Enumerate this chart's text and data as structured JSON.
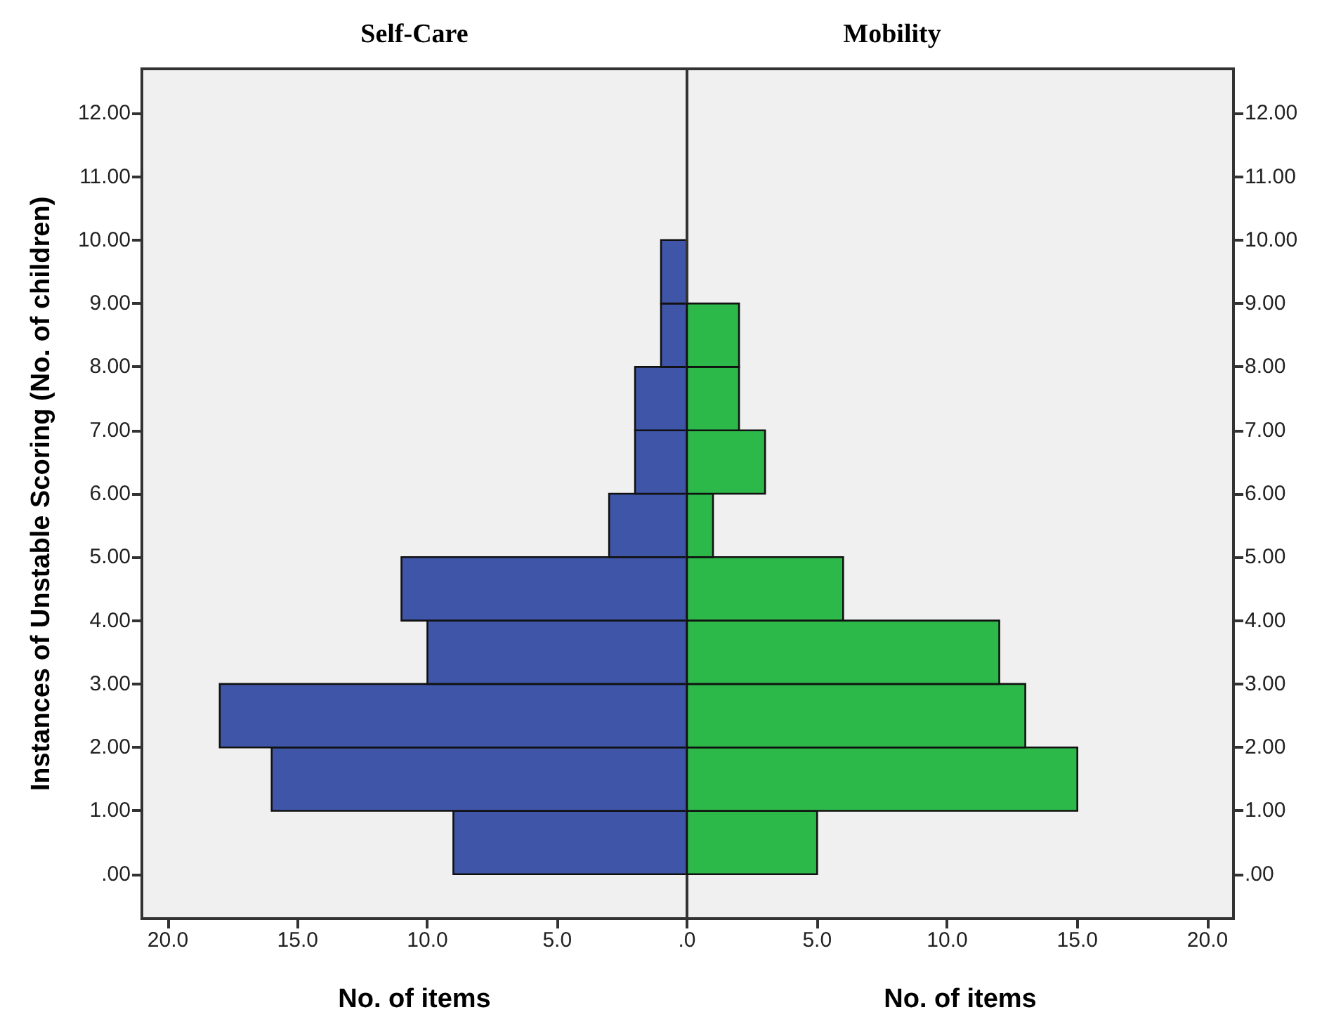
{
  "chart_data": [
    {
      "type": "histogram",
      "orientation": "horizontal",
      "title": "Self-Care",
      "xlabel": "No. of items",
      "ylabel": "Instances of Unstable Scoring (No. of children)",
      "bins": [
        0,
        1,
        2,
        3,
        4,
        5,
        6,
        7,
        8,
        9,
        10
      ],
      "values": [
        9,
        16,
        18,
        10,
        11,
        3,
        2,
        2,
        1,
        1
      ],
      "color": "#3f56a8",
      "xlim": [
        21,
        0
      ],
      "xticks": [
        {
          "value": 20,
          "label": "20.0"
        },
        {
          "value": 15,
          "label": "15.0"
        },
        {
          "value": 10,
          "label": "10.0"
        },
        {
          "value": 5,
          "label": "5.0"
        },
        {
          "value": 0,
          "label": null
        }
      ],
      "ylim": [
        -0.7,
        12.7
      ],
      "yticks": [
        {
          "value": 0,
          "label": ".00"
        },
        {
          "value": 1,
          "label": "1.00"
        },
        {
          "value": 2,
          "label": "2.00"
        },
        {
          "value": 3,
          "label": "3.00"
        },
        {
          "value": 4,
          "label": "4.00"
        },
        {
          "value": 5,
          "label": "5.00"
        },
        {
          "value": 6,
          "label": "6.00"
        },
        {
          "value": 7,
          "label": "7.00"
        },
        {
          "value": 8,
          "label": "8.00"
        },
        {
          "value": 9,
          "label": "9.00"
        },
        {
          "value": 10,
          "label": "10.00"
        },
        {
          "value": 11,
          "label": "11.00"
        },
        {
          "value": 12,
          "label": "12.00"
        }
      ],
      "grid": false
    },
    {
      "type": "histogram",
      "orientation": "horizontal",
      "title": "Mobility",
      "xlabel": "No. of items",
      "bins": [
        0,
        1,
        2,
        3,
        4,
        5,
        6,
        7,
        8,
        9,
        10
      ],
      "values": [
        5,
        15,
        13,
        12,
        6,
        1,
        3,
        2,
        2,
        0
      ],
      "color": "#2db84a",
      "xlim": [
        0,
        21
      ],
      "xticks": [
        {
          "value": 0,
          "label": ".0"
        },
        {
          "value": 5,
          "label": "5.0"
        },
        {
          "value": 10,
          "label": "10.0"
        },
        {
          "value": 15,
          "label": "15.0"
        },
        {
          "value": 20,
          "label": "20.0"
        }
      ],
      "ylim": [
        -0.7,
        12.7
      ],
      "yticks": [
        {
          "value": 0,
          "label": ".00"
        },
        {
          "value": 1,
          "label": "1.00"
        },
        {
          "value": 2,
          "label": "2.00"
        },
        {
          "value": 3,
          "label": "3.00"
        },
        {
          "value": 4,
          "label": "4.00"
        },
        {
          "value": 5,
          "label": "5.00"
        },
        {
          "value": 6,
          "label": "6.00"
        },
        {
          "value": 7,
          "label": "7.00"
        },
        {
          "value": 8,
          "label": "8.00"
        },
        {
          "value": 9,
          "label": "9.00"
        },
        {
          "value": 10,
          "label": "10.00"
        },
        {
          "value": 11,
          "label": "11.00"
        },
        {
          "value": 12,
          "label": "12.00"
        }
      ],
      "grid": false
    }
  ]
}
